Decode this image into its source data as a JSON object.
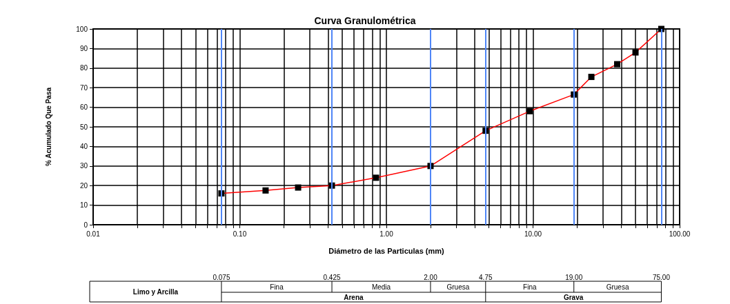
{
  "chart_data": {
    "type": "line",
    "title": "Curva Granulométrica",
    "xlabel": "Diámetro de las Particulas (mm)",
    "ylabel": "% Acumulado Que Pasa",
    "x": [
      0.075,
      0.15,
      0.25,
      0.425,
      0.85,
      2.0,
      4.75,
      9.5,
      19,
      25,
      37.5,
      50,
      75
    ],
    "series": [
      {
        "color": "#ff0000",
        "values": [
          16,
          17.5,
          19,
          20,
          24,
          30,
          48,
          58,
          66.5,
          75.5,
          82,
          88,
          100
        ]
      }
    ],
    "log": "x",
    "marker": "square",
    "grid": true,
    "xlim": [
      0.01,
      100
    ],
    "ylim": [
      0,
      100
    ],
    "yticks": [
      0,
      10,
      20,
      30,
      40,
      50,
      60,
      70,
      80,
      90,
      100
    ],
    "xticks": [
      {
        "value": 0.01,
        "label": "0.01"
      },
      {
        "value": 0.02,
        "label": null
      },
      {
        "value": 0.03,
        "label": null
      },
      {
        "value": 0.04,
        "label": null
      },
      {
        "value": 0.05,
        "label": null
      },
      {
        "value": 0.06,
        "label": null
      },
      {
        "value": 0.07,
        "label": null
      },
      {
        "value": 0.08,
        "label": null
      },
      {
        "value": 0.09,
        "label": null
      },
      {
        "value": 0.1,
        "label": "0.10"
      },
      {
        "value": 0.2,
        "label": null
      },
      {
        "value": 0.3,
        "label": null
      },
      {
        "value": 0.4,
        "label": null
      },
      {
        "value": 0.5,
        "label": null
      },
      {
        "value": 0.6,
        "label": null
      },
      {
        "value": 0.7,
        "label": null
      },
      {
        "value": 0.8,
        "label": null
      },
      {
        "value": 0.9,
        "label": null
      },
      {
        "value": 1,
        "label": "1.00"
      },
      {
        "value": 2,
        "label": null
      },
      {
        "value": 3,
        "label": null
      },
      {
        "value": 4,
        "label": null
      },
      {
        "value": 5,
        "label": null
      },
      {
        "value": 6,
        "label": null
      },
      {
        "value": 7,
        "label": null
      },
      {
        "value": 8,
        "label": null
      },
      {
        "value": 9,
        "label": null
      },
      {
        "value": 10,
        "label": "10.00"
      },
      {
        "value": 20,
        "label": null
      },
      {
        "value": 30,
        "label": null
      },
      {
        "value": 40,
        "label": null
      },
      {
        "value": 50,
        "label": null
      },
      {
        "value": 60,
        "label": null
      },
      {
        "value": 70,
        "label": null
      },
      {
        "value": 80,
        "label": null
      },
      {
        "value": 90,
        "label": null
      },
      {
        "value": 100,
        "label": "100.00"
      }
    ],
    "ref_lines": [
      {
        "axis": "x",
        "value": 0.075,
        "color": "#4f86f7"
      },
      {
        "axis": "x",
        "value": 0.425,
        "color": "#4f86f7"
      },
      {
        "axis": "x",
        "value": 2.0,
        "color": "#4f86f7"
      },
      {
        "axis": "x",
        "value": 4.75,
        "color": "#4f86f7"
      },
      {
        "axis": "x",
        "value": 19,
        "color": "#4f86f7"
      },
      {
        "axis": "x",
        "value": 75,
        "color": "#4f86f7"
      }
    ],
    "annotations": [
      "0.075",
      "0.425",
      "2.00",
      "4.75",
      "19.00",
      "75.00",
      "Limo y Arcilla",
      "Fina",
      "Media",
      "Gruesa",
      "Fina",
      "Gruesa",
      "Arena",
      "Grava"
    ]
  }
}
